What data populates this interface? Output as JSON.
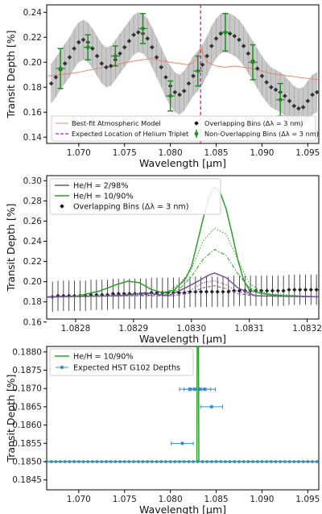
{
  "chart_data": [
    {
      "type": "line",
      "xlabel": "Wavelength [μm]",
      "ylabel": "Transit Depth [%]",
      "xlim": [
        1.0665,
        1.0962
      ],
      "ylim": [
        0.135,
        0.246
      ],
      "xticks": [
        1.07,
        1.075,
        1.08,
        1.085,
        1.09,
        1.095
      ],
      "xtick_labels": [
        "1.070",
        "1.075",
        "1.080",
        "1.085",
        "1.090",
        "1.095"
      ],
      "yticks": [
        0.14,
        0.16,
        0.18,
        0.2,
        0.22,
        0.24
      ],
      "ytick_labels": [
        "0.14",
        "0.16",
        "0.18",
        "0.20",
        "0.22",
        "0.24"
      ],
      "legend": {
        "placement": "lower center",
        "entries": [
          {
            "label": "Best-fit Atmospheric Model",
            "color": "#e8a07a",
            "kind": "line"
          },
          {
            "label": "Expected Location of Helium Triplet",
            "color": "#c51bb4",
            "kind": "dashed"
          },
          {
            "label": "Overlapping Bins (Δλ = 3 nm)",
            "color": "#111111",
            "kind": "diamond"
          },
          {
            "label": "Non-Overlapping Bins (Δλ = 3 nm)",
            "color": "#1f8f1f",
            "kind": "errorbar"
          }
        ]
      },
      "helium_line_x": 1.0833,
      "overlapping": {
        "x": [
          1.067,
          1.0675,
          1.068,
          1.0685,
          1.069,
          1.0695,
          1.07,
          1.0705,
          1.071,
          1.0715,
          1.072,
          1.0725,
          1.073,
          1.0735,
          1.074,
          1.0745,
          1.075,
          1.0755,
          1.076,
          1.0765,
          1.077,
          1.0775,
          1.078,
          1.0785,
          1.079,
          1.0795,
          1.08,
          1.0805,
          1.081,
          1.0815,
          1.082,
          1.0825,
          1.083,
          1.0835,
          1.084,
          1.0845,
          1.085,
          1.0855,
          1.086,
          1.0865,
          1.087,
          1.0875,
          1.088,
          1.0885,
          1.089,
          1.0895,
          1.09,
          1.0905,
          1.091,
          1.0915,
          1.092,
          1.0925,
          1.093,
          1.0935,
          1.094,
          1.0945,
          1.095,
          1.0955,
          1.096
        ],
        "y": [
          0.183,
          0.188,
          0.194,
          0.199,
          0.204,
          0.211,
          0.216,
          0.218,
          0.216,
          0.211,
          0.205,
          0.199,
          0.196,
          0.197,
          0.202,
          0.207,
          0.212,
          0.217,
          0.222,
          0.224,
          0.223,
          0.219,
          0.212,
          0.204,
          0.196,
          0.188,
          0.181,
          0.176,
          0.174,
          0.177,
          0.183,
          0.189,
          0.193,
          0.198,
          0.205,
          0.213,
          0.219,
          0.223,
          0.224,
          0.223,
          0.221,
          0.218,
          0.213,
          0.207,
          0.201,
          0.195,
          0.189,
          0.184,
          0.18,
          0.178,
          0.176,
          0.173,
          0.169,
          0.165,
          0.163,
          0.164,
          0.169,
          0.174,
          0.176
        ],
        "yerr": 0.016
      },
      "non_overlapping": {
        "x": [
          1.068,
          1.071,
          1.074,
          1.077,
          1.08,
          1.083,
          1.086,
          1.089,
          1.092
        ],
        "y": [
          0.195,
          0.212,
          0.205,
          0.227,
          0.173,
          0.193,
          0.224,
          0.2,
          0.17
        ],
        "yerr": [
          0.016,
          0.01,
          0.008,
          0.012,
          0.012,
          0.012,
          0.015,
          0.014,
          0.013
        ],
        "xerr": 0.0005
      },
      "model": {
        "x": [
          1.0665,
          1.068,
          1.07,
          1.072,
          1.074,
          1.076,
          1.077,
          1.078,
          1.079,
          1.08,
          1.081,
          1.082,
          1.0826,
          1.083,
          1.0833,
          1.0836,
          1.084,
          1.085,
          1.086,
          1.087,
          1.088,
          1.089,
          1.09,
          1.091,
          1.092,
          1.093,
          1.094,
          1.095,
          1.0962
        ],
        "y": [
          0.189,
          0.19,
          0.192,
          0.195,
          0.198,
          0.201,
          0.202,
          0.203,
          0.201,
          0.2,
          0.199,
          0.198,
          0.2,
          0.205,
          0.212,
          0.207,
          0.2,
          0.197,
          0.196,
          0.197,
          0.196,
          0.195,
          0.193,
          0.191,
          0.19,
          0.189,
          0.188,
          0.187,
          0.186
        ]
      }
    },
    {
      "type": "line",
      "xlabel": "Wavelength [μm]",
      "ylabel": "Transit Depth [%]",
      "xlim": [
        1.08275,
        1.08322
      ],
      "ylim": [
        0.163,
        0.305
      ],
      "xticks": [
        1.0828,
        1.0829,
        1.083,
        1.0831,
        1.0832
      ],
      "xtick_labels": [
        "1.0828",
        "1.0829",
        "1.0830",
        "1.0831",
        "1.0832"
      ],
      "yticks": [
        0.16,
        0.18,
        0.2,
        0.22,
        0.24,
        0.26,
        0.28,
        0.3
      ],
      "ytick_labels": [
        "0.16",
        "0.18",
        "0.20",
        "0.22",
        "0.24",
        "0.26",
        "0.28",
        "0.30"
      ],
      "legend": {
        "placement": "upper left",
        "entries": [
          {
            "label": "He/H = 2/98%",
            "color": "#7b4fa0",
            "kind": "line"
          },
          {
            "label": "He/H = 10/90%",
            "color": "#2ca02c",
            "kind": "line"
          },
          {
            "label": "Overlapping Bins (Δλ = 3 nm)",
            "color": "#111111",
            "kind": "diamond"
          }
        ]
      },
      "series": [
        {
          "name": "He/H = 10/90%",
          "style": "solid",
          "color": "#2ca02c",
          "x": [
            1.08275,
            1.0828,
            1.08284,
            1.08287,
            1.08289,
            1.08291,
            1.08293,
            1.08295,
            1.08297,
            1.08299,
            1.083,
            1.08301,
            1.08302,
            1.08303,
            1.08304,
            1.08305,
            1.08306,
            1.08307,
            1.08308,
            1.08309,
            1.0831,
            1.08312,
            1.08314,
            1.08316,
            1.08322
          ],
          "y": [
            0.1845,
            0.1855,
            0.1905,
            0.197,
            0.2005,
            0.199,
            0.1925,
            0.189,
            0.1915,
            0.203,
            0.215,
            0.238,
            0.262,
            0.283,
            0.2935,
            0.288,
            0.272,
            0.248,
            0.222,
            0.202,
            0.1915,
            0.1885,
            0.187,
            0.186,
            0.185
          ]
        },
        {
          "name": "",
          "style": "dotted",
          "color": "#2ca02c",
          "x": [
            1.08275,
            1.08285,
            1.0829,
            1.08295,
            1.08298,
            1.083,
            1.08302,
            1.08304,
            1.08306,
            1.08308,
            1.0831,
            1.08313,
            1.08322
          ],
          "y": [
            0.185,
            0.187,
            0.188,
            0.187,
            0.198,
            0.212,
            0.24,
            0.253,
            0.247,
            0.222,
            0.198,
            0.188,
            0.185
          ]
        },
        {
          "name": "",
          "style": "dashdot",
          "color": "#2ca02c",
          "x": [
            1.08275,
            1.08285,
            1.0829,
            1.08295,
            1.08298,
            1.083,
            1.08302,
            1.08304,
            1.08306,
            1.08308,
            1.0831,
            1.08313,
            1.08322
          ],
          "y": [
            0.185,
            0.186,
            0.187,
            0.186,
            0.193,
            0.205,
            0.222,
            0.232,
            0.226,
            0.208,
            0.194,
            0.187,
            0.185
          ]
        },
        {
          "name": "He/H = 2/98%",
          "style": "solid",
          "color": "#7b4fa0",
          "x": [
            1.08275,
            1.08288,
            1.08292,
            1.08296,
            1.08299,
            1.08301,
            1.08303,
            1.08304,
            1.08306,
            1.08308,
            1.08311,
            1.08322
          ],
          "y": [
            0.185,
            0.186,
            0.189,
            0.186,
            0.194,
            0.2,
            0.2065,
            0.2085,
            0.204,
            0.194,
            0.186,
            0.185
          ]
        },
        {
          "name": "",
          "style": "dotted",
          "color": "#7b4fa0",
          "x": [
            1.08275,
            1.0829,
            1.08297,
            1.083,
            1.08302,
            1.08304,
            1.08306,
            1.08308,
            1.08311,
            1.08322
          ],
          "y": [
            0.185,
            0.187,
            0.186,
            0.192,
            0.199,
            0.201,
            0.197,
            0.19,
            0.186,
            0.185
          ]
        },
        {
          "name": "",
          "style": "dashed",
          "color": "#7b4fa0",
          "x": [
            1.08275,
            1.0829,
            1.08297,
            1.083,
            1.08302,
            1.08304,
            1.08306,
            1.08308,
            1.08311,
            1.08322
          ],
          "y": [
            0.185,
            0.186,
            0.186,
            0.189,
            0.194,
            0.196,
            0.193,
            0.188,
            0.186,
            0.185
          ]
        }
      ],
      "overlapping": {
        "x_start": 1.08276,
        "x_step": 9.5e-06,
        "count": 49,
        "y": [
          0.185,
          0.186,
          0.186,
          0.186,
          0.186,
          0.186,
          0.186,
          0.187,
          0.187,
          0.187,
          0.187,
          0.188,
          0.188,
          0.188,
          0.188,
          0.188,
          0.188,
          0.188,
          0.189,
          0.189,
          0.189,
          0.189,
          0.189,
          0.189,
          0.189,
          0.19,
          0.19,
          0.19,
          0.19,
          0.19,
          0.19,
          0.19,
          0.19,
          0.191,
          0.191,
          0.191,
          0.191,
          0.191,
          0.191,
          0.191,
          0.191,
          0.191,
          0.191,
          0.192,
          0.192,
          0.192,
          0.192,
          0.192,
          0.192
        ],
        "yerr": 0.015
      }
    },
    {
      "type": "line",
      "xlabel": "Wavelength [μm]",
      "ylabel": "Transit Depth [%]",
      "xlim": [
        1.0665,
        1.0962
      ],
      "ylim": [
        0.18423,
        0.18815
      ],
      "xticks": [
        1.07,
        1.075,
        1.08,
        1.085,
        1.09,
        1.095
      ],
      "xtick_labels": [
        "1.070",
        "1.075",
        "1.080",
        "1.085",
        "1.090",
        "1.095"
      ],
      "yticks": [
        0.1845,
        0.185,
        0.1855,
        0.186,
        0.1865,
        0.187,
        0.1875,
        0.188
      ],
      "ytick_labels": [
        "0.1845",
        "0.1850",
        "0.1855",
        "0.1860",
        "0.1865",
        "0.1870",
        "0.1875",
        "0.1880"
      ],
      "legend": {
        "placement": "upper left",
        "entries": [
          {
            "label": "He/H = 10/90%",
            "color": "#2ca02c",
            "kind": "line"
          },
          {
            "label": "Expected HST G102 Depths",
            "color": "#3a8dc4",
            "kind": "errorbar"
          }
        ]
      },
      "model_baseline": 0.185,
      "model_spike_x": 1.083,
      "hst_points": {
        "x": [
          1.0813,
          1.0822,
          1.0827,
          1.0832,
          1.0837,
          1.0845
        ],
        "y": [
          0.1855,
          0.18698,
          0.18698,
          0.18698,
          0.18698,
          0.1865
        ],
        "xerr": [
          0.0012,
          0.0012,
          0.0012,
          0.0012,
          0.0012,
          0.0012
        ],
        "yerr": [
          3e-05,
          3e-05,
          3e-05,
          3e-05,
          3e-05,
          3e-05
        ]
      },
      "baseline_points": {
        "x_start": 1.0665,
        "x_step": 0.0005,
        "count": 60,
        "y": 0.185
      }
    }
  ]
}
